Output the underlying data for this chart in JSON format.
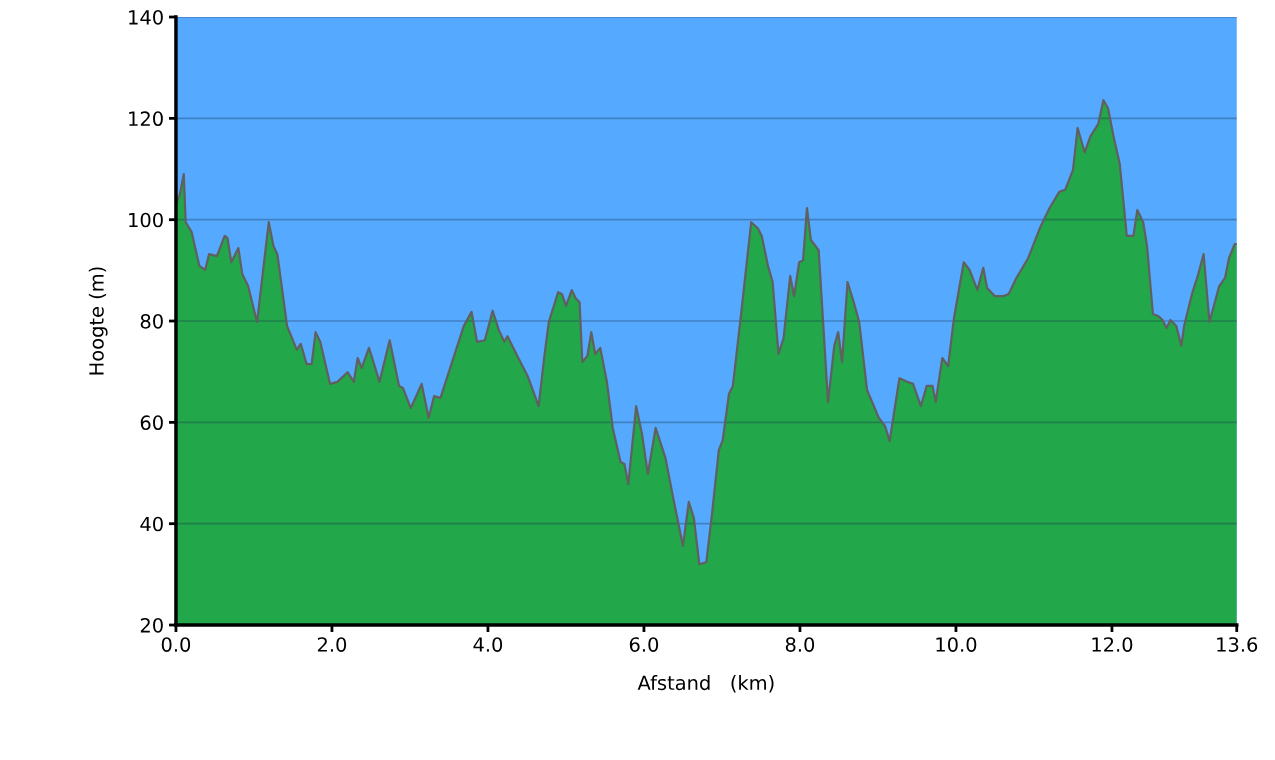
{
  "chart_data": {
    "type": "area",
    "xlabel": "Afstand   (km)",
    "ylabel": "Hoogte (m)",
    "x": [
      0,
      0.05,
      0.1,
      0.125,
      0.2,
      0.3,
      0.375,
      0.425,
      0.525,
      0.625,
      0.66,
      0.71,
      0.8,
      0.85,
      0.925,
      1.04,
      1.19,
      1.25,
      1.3,
      1.425,
      1.55,
      1.6,
      1.675,
      1.74,
      1.79,
      1.85,
      1.975,
      2.07,
      2.2,
      2.28,
      2.33,
      2.38,
      2.475,
      2.61,
      2.74,
      2.86,
      2.91,
      3.01,
      3.15,
      3.24,
      3.31,
      3.39,
      3.54,
      3.69,
      3.79,
      3.86,
      3.96,
      4.06,
      4.14,
      4.21,
      4.25,
      4.39,
      4.51,
      4.65,
      4.72,
      4.78,
      4.9,
      4.95,
      5.0,
      5.075,
      5.125,
      5.175,
      5.21,
      5.275,
      5.325,
      5.375,
      5.44,
      5.525,
      5.6,
      5.7,
      5.75,
      5.8,
      5.9,
      5.975,
      6.05,
      6.15,
      6.275,
      6.375,
      6.5,
      6.575,
      6.64,
      6.71,
      6.8,
      6.875,
      6.96,
      7.01,
      7.09,
      7.14,
      7.24,
      7.375,
      7.46,
      7.51,
      7.59,
      7.65,
      7.725,
      7.79,
      7.875,
      7.925,
      7.99,
      8.04,
      8.09,
      8.14,
      8.24,
      8.36,
      8.44,
      8.49,
      8.54,
      8.61,
      8.69,
      8.76,
      8.86,
      9.01,
      9.09,
      9.15,
      9.275,
      9.375,
      9.45,
      9.55,
      9.625,
      9.7,
      9.74,
      9.825,
      9.9,
      9.975,
      10.1,
      10.175,
      10.275,
      10.35,
      10.4,
      10.5,
      10.6,
      10.675,
      10.775,
      10.925,
      11.075,
      11.2,
      11.325,
      11.4,
      11.5,
      11.56,
      11.65,
      11.725,
      11.825,
      11.89,
      11.95,
      12.025,
      12.1,
      12.19,
      12.275,
      12.325,
      12.4,
      12.45,
      12.525,
      12.59,
      12.65,
      12.7,
      12.75,
      12.825,
      12.89,
      12.925,
      13.025,
      13.1,
      13.175,
      13.25,
      13.375,
      13.45,
      13.5,
      13.575,
      13.6
    ],
    "values": [
      103,
      105,
      109,
      99.5,
      97.6,
      90.9,
      90.1,
      93.2,
      92.8,
      96.8,
      96.4,
      91.6,
      94.4,
      89.3,
      86.9,
      79.8,
      99.5,
      94.8,
      93.2,
      79,
      74.3,
      75.5,
      71.5,
      71.5,
      77.8,
      75.9,
      67.6,
      68,
      69.9,
      68,
      72.7,
      70.7,
      74.7,
      68,
      76.2,
      67.2,
      66.8,
      62.8,
      67.6,
      60.9,
      65.2,
      64.8,
      71.9,
      79,
      81.8,
      75.9,
      76.2,
      82,
      78.2,
      75.9,
      77,
      72.7,
      69.1,
      63.2,
      72.7,
      79.8,
      85.7,
      85.3,
      83,
      86.1,
      84.5,
      83.7,
      71.9,
      73.1,
      77.8,
      73.5,
      74.7,
      68,
      58.9,
      52.2,
      51.8,
      47.8,
      63.2,
      57.7,
      49.8,
      58.9,
      53,
      45.1,
      35.6,
      44.3,
      41.1,
      32,
      32.4,
      42.3,
      54.5,
      56.5,
      65.6,
      67.2,
      80.6,
      99.5,
      98.3,
      96.8,
      90.9,
      87.7,
      73.5,
      76.6,
      88.9,
      84.9,
      91.6,
      92,
      102.3,
      96,
      94,
      64,
      75.1,
      77.8,
      71.9,
      87.7,
      83.7,
      79.8,
      66.4,
      60.9,
      59.3,
      56.3,
      68.7,
      68,
      67.6,
      63.2,
      67.2,
      67.2,
      64,
      72.7,
      71.1,
      80.6,
      91.6,
      90.1,
      86.1,
      90.5,
      86.5,
      84.9,
      84.9,
      85.3,
      88.5,
      92.4,
      98.3,
      102.3,
      105.5,
      105.9,
      109.8,
      118.1,
      113.3,
      116.5,
      118.9,
      123.6,
      122,
      116.1,
      111,
      96.8,
      96.8,
      101.9,
      99.5,
      94.8,
      81.4,
      81,
      80.2,
      78.6,
      80.2,
      79,
      75.1,
      79,
      85.3,
      88.9,
      93.2,
      79.8,
      86.9,
      88.5,
      92.4,
      95.2,
      95.2
    ],
    "color": "#22a84a",
    "xlim": [
      0,
      13.6
    ],
    "xticks": [
      {
        "value": 0,
        "label": "0.0"
      },
      {
        "value": 2,
        "label": "2.0"
      },
      {
        "value": 4,
        "label": "4.0"
      },
      {
        "value": 6,
        "label": "6.0"
      },
      {
        "value": 8,
        "label": "8.0"
      },
      {
        "value": 10,
        "label": "10.0"
      },
      {
        "value": 12,
        "label": "12.0"
      },
      {
        "value": 13.6,
        "label": "13.6"
      }
    ],
    "ylim": [
      20,
      140
    ],
    "yticks": [
      20,
      40,
      60,
      80,
      100,
      120,
      140
    ],
    "grid": "y"
  }
}
